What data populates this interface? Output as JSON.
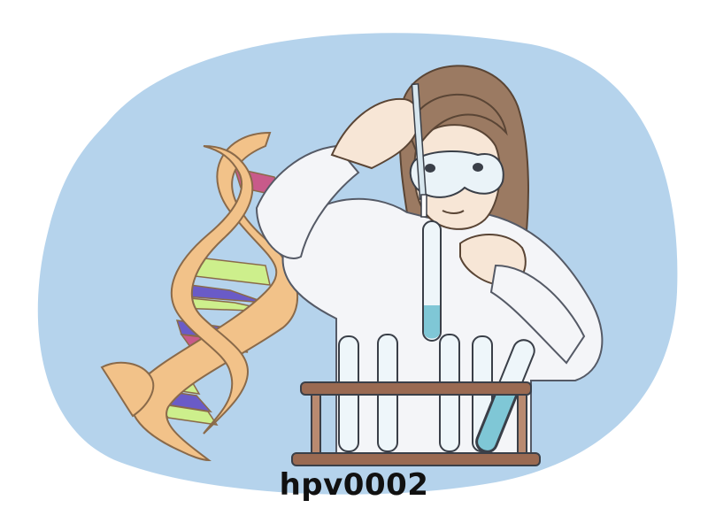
{
  "caption": "hpv0002",
  "colors": {
    "background_blob": "#b5d3ec",
    "dna_backbone": "#f2c289",
    "dna_outline": "#8a6a4a",
    "rung_purple": "#6a5bc7",
    "rung_green": "#cdef8c",
    "rung_pink": "#c85a8a",
    "coat": "#f4f5f8",
    "hair": "#9b7a62",
    "skin": "#f7e6d6",
    "rack_wood": "#9a6a52",
    "liquid": "#7fc7d6"
  },
  "icons": [
    "dna-helix-icon",
    "scientist-icon",
    "test-tube-rack-icon",
    "pipette-icon"
  ]
}
